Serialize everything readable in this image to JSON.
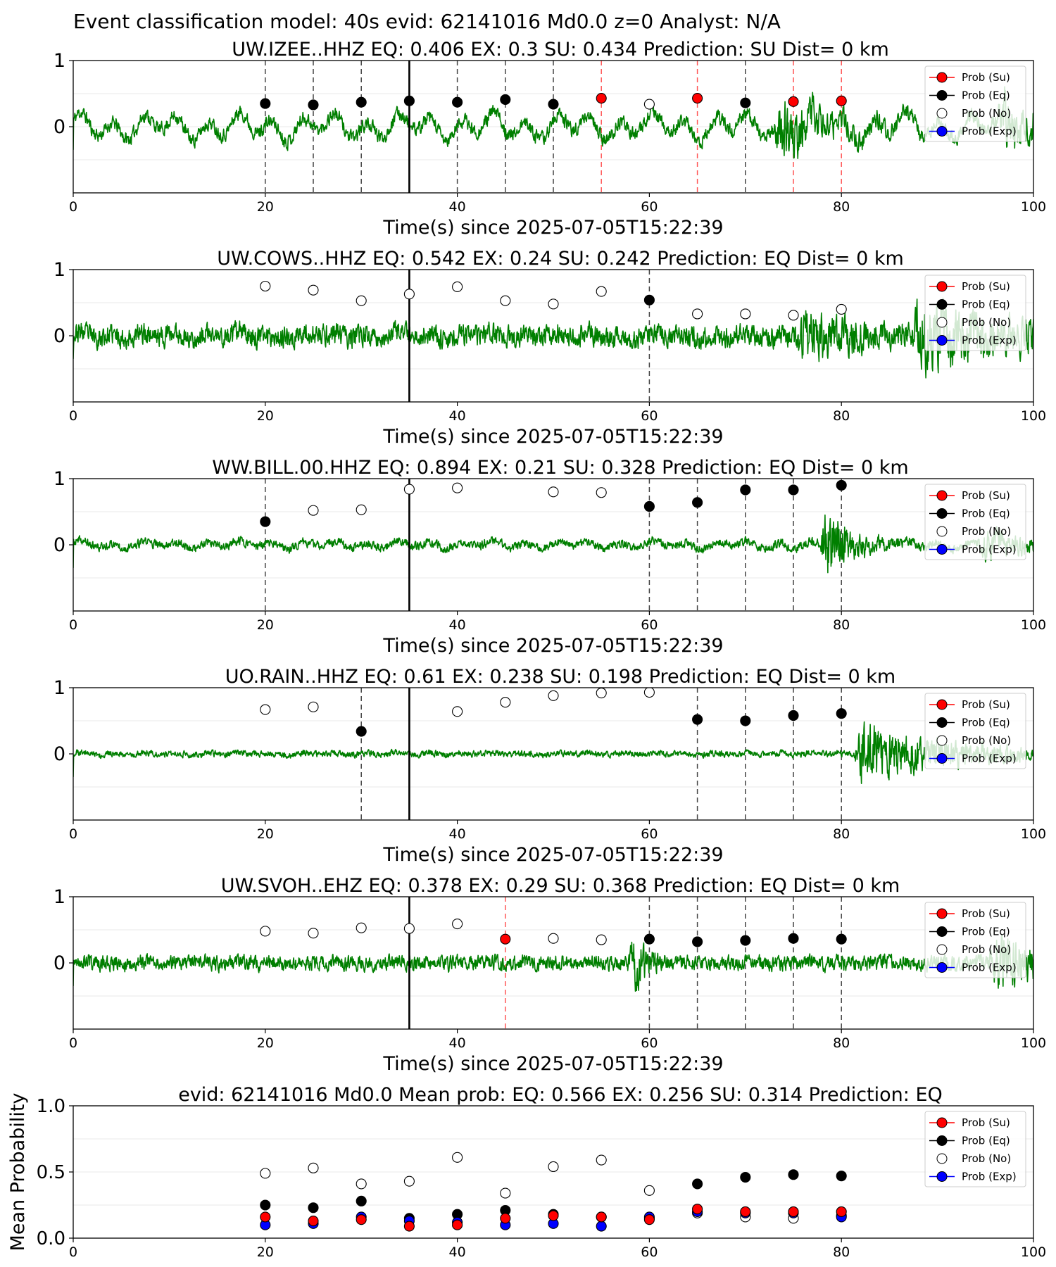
{
  "figure_title": "Event classification model: 40s evid: 62141016 Md0.0 z=0 Analyst: N/A",
  "colors": {
    "waveform": "#007f00",
    "su": "#ff0000",
    "eq": "#000000",
    "no": "#ffffff",
    "exp": "#0000ff",
    "eq_line": "#444444",
    "su_line": "#ff5555",
    "origin_line": "#000000"
  },
  "legend": {
    "location": "upper right",
    "entries": [
      "Prob (Su)",
      "Prob (Eq)",
      "Prob (No)",
      "Prob (Exp)"
    ]
  },
  "chart_data": [
    {
      "type": "line+scatter",
      "title": "UW.IZEE..HHZ   EQ: 0.406  EX: 0.3  SU: 0.434   Prediction: SU    Dist= 0 km",
      "xlabel": "Time(s) since 2025-07-05T15:22:39",
      "ylabel": "",
      "xlim": [
        0,
        100
      ],
      "ylim": [
        -1,
        1
      ],
      "xticks": [
        "0",
        "20",
        "40",
        "60",
        "80",
        "100"
      ],
      "yticks": [
        "0",
        "1"
      ],
      "origin_time": 35,
      "waveform": {
        "seed": 11,
        "noise": 0.16,
        "low": 0.22,
        "events": [
          {
            "t": 73.5,
            "amp": 0.55,
            "dur": 5
          },
          {
            "t": 97,
            "amp": 0.5,
            "dur": 4
          }
        ]
      },
      "windows": [
        {
          "t": 20,
          "label": "EQ",
          "eq": 0.35
        },
        {
          "t": 25,
          "label": "EQ",
          "eq": 0.33
        },
        {
          "t": 30,
          "label": "EQ",
          "eq": 0.37
        },
        {
          "t": 35,
          "label": "EQ",
          "eq": 0.39
        },
        {
          "t": 40,
          "label": "EQ",
          "eq": 0.37
        },
        {
          "t": 45,
          "label": "EQ",
          "eq": 0.41
        },
        {
          "t": 50,
          "label": "EQ",
          "eq": 0.34
        },
        {
          "t": 55,
          "label": "SU",
          "su": 0.43
        },
        {
          "t": 60,
          "label": "",
          "no": 0.34
        },
        {
          "t": 65,
          "label": "SU",
          "su": 0.43
        },
        {
          "t": 70,
          "label": "EQ",
          "eq": 0.36
        },
        {
          "t": 75,
          "label": "SU",
          "su": 0.38
        },
        {
          "t": 80,
          "label": "SU",
          "su": 0.39
        }
      ]
    },
    {
      "type": "line+scatter",
      "title": "UW.COWS..HHZ   EQ: 0.542  EX: 0.24  SU: 0.242   Prediction: EQ    Dist= 0 km",
      "xlabel": "Time(s) since 2025-07-05T15:22:39",
      "ylabel": "",
      "xlim": [
        0,
        100
      ],
      "ylim": [
        -1,
        1
      ],
      "xticks": [
        "0",
        "20",
        "40",
        "60",
        "80",
        "100"
      ],
      "yticks": [
        "0",
        "1"
      ],
      "origin_time": 35,
      "waveform": {
        "seed": 23,
        "noise": 0.24,
        "low": 0.05,
        "events": [
          {
            "t": 88,
            "amp": 0.55,
            "dur": 9
          },
          {
            "t": 76,
            "amp": 0.35,
            "dur": 6
          }
        ]
      },
      "windows": [
        {
          "t": 20,
          "label": "",
          "no": 0.75
        },
        {
          "t": 25,
          "label": "",
          "no": 0.69
        },
        {
          "t": 30,
          "label": "",
          "no": 0.53
        },
        {
          "t": 35,
          "label": "",
          "no": 0.63
        },
        {
          "t": 40,
          "label": "",
          "no": 0.74
        },
        {
          "t": 45,
          "label": "",
          "no": 0.53
        },
        {
          "t": 50,
          "label": "",
          "no": 0.48
        },
        {
          "t": 55,
          "label": "",
          "no": 0.67
        },
        {
          "t": 60,
          "label": "EQ",
          "eq": 0.54
        },
        {
          "t": 65,
          "label": "",
          "no": 0.33
        },
        {
          "t": 70,
          "label": "",
          "no": 0.33
        },
        {
          "t": 75,
          "label": "",
          "no": 0.31
        },
        {
          "t": 80,
          "label": "",
          "no": 0.4
        }
      ]
    },
    {
      "type": "line+scatter",
      "title": "WW.BILL.00.HHZ   EQ: 0.894  EX: 0.21  SU: 0.328   Prediction: EQ    Dist= 0 km",
      "xlabel": "Time(s) since 2025-07-05T15:22:39",
      "ylabel": "",
      "xlim": [
        0,
        100
      ],
      "ylim": [
        -1,
        1
      ],
      "xticks": [
        "0",
        "20",
        "40",
        "60",
        "80",
        "100"
      ],
      "yticks": [
        "0",
        "1"
      ],
      "origin_time": 35,
      "waveform": {
        "seed": 37,
        "noise": 0.1,
        "low": 0.06,
        "events": [
          {
            "t": 78.5,
            "amp": 0.75,
            "dur": 2.5
          },
          {
            "t": 95,
            "amp": 0.25,
            "dur": 5
          }
        ]
      },
      "windows": [
        {
          "t": 20,
          "label": "EQ",
          "eq": 0.35
        },
        {
          "t": 25,
          "label": "",
          "no": 0.52
        },
        {
          "t": 30,
          "label": "",
          "no": 0.53
        },
        {
          "t": 35,
          "label": "",
          "no": 0.84
        },
        {
          "t": 40,
          "label": "",
          "no": 0.86
        },
        {
          "t": 50,
          "label": "",
          "no": 0.8
        },
        {
          "t": 55,
          "label": "",
          "no": 0.79
        },
        {
          "t": 60,
          "label": "EQ",
          "eq": 0.58
        },
        {
          "t": 65,
          "label": "EQ",
          "eq": 0.64
        },
        {
          "t": 70,
          "label": "EQ",
          "eq": 0.83
        },
        {
          "t": 75,
          "label": "EQ",
          "eq": 0.83
        },
        {
          "t": 80,
          "label": "EQ",
          "eq": 0.9
        }
      ]
    },
    {
      "type": "line+scatter",
      "title": "UO.RAIN..HHZ   EQ: 0.61  EX: 0.238  SU: 0.198   Prediction: EQ    Dist= 0 km",
      "xlabel": "Time(s) since 2025-07-05T15:22:39",
      "ylabel": "",
      "xlim": [
        0,
        100
      ],
      "ylim": [
        -1,
        1
      ],
      "xticks": [
        "0",
        "20",
        "40",
        "60",
        "80",
        "100"
      ],
      "yticks": [
        "0",
        "1"
      ],
      "origin_time": 35,
      "waveform": {
        "seed": 51,
        "noise": 0.07,
        "low": 0.02,
        "events": [
          {
            "t": 82,
            "amp": 0.65,
            "dur": 9
          }
        ]
      },
      "windows": [
        {
          "t": 20,
          "label": "",
          "no": 0.67
        },
        {
          "t": 25,
          "label": "",
          "no": 0.71
        },
        {
          "t": 30,
          "label": "EQ",
          "eq": 0.34
        },
        {
          "t": 40,
          "label": "",
          "no": 0.64
        },
        {
          "t": 45,
          "label": "",
          "no": 0.78
        },
        {
          "t": 50,
          "label": "",
          "no": 0.88
        },
        {
          "t": 55,
          "label": "",
          "no": 0.92
        },
        {
          "t": 60,
          "label": "",
          "no": 0.93
        },
        {
          "t": 65,
          "label": "EQ",
          "eq": 0.52
        },
        {
          "t": 70,
          "label": "EQ",
          "eq": 0.5
        },
        {
          "t": 75,
          "label": "EQ",
          "eq": 0.58
        },
        {
          "t": 80,
          "label": "EQ",
          "eq": 0.61
        }
      ]
    },
    {
      "type": "line+scatter",
      "title": "UW.SVOH..EHZ   EQ: 0.378  EX: 0.29  SU: 0.368   Prediction: EQ    Dist= 0 km",
      "xlabel": "Time(s) since 2025-07-05T15:22:39",
      "ylabel": "",
      "xlim": [
        0,
        100
      ],
      "ylim": [
        -1,
        1
      ],
      "xticks": [
        "0",
        "20",
        "40",
        "60",
        "80",
        "100"
      ],
      "yticks": [
        "0",
        "1"
      ],
      "origin_time": 35,
      "waveform": {
        "seed": 67,
        "noise": 0.17,
        "low": 0.02,
        "events": [
          {
            "t": 96,
            "amp": 0.45,
            "dur": 6
          },
          {
            "t": 58.5,
            "amp": 0.55,
            "dur": 1
          }
        ]
      },
      "windows": [
        {
          "t": 20,
          "label": "",
          "no": 0.48
        },
        {
          "t": 25,
          "label": "",
          "no": 0.45
        },
        {
          "t": 30,
          "label": "",
          "no": 0.53
        },
        {
          "t": 35,
          "label": "",
          "no": 0.52
        },
        {
          "t": 40,
          "label": "",
          "no": 0.59
        },
        {
          "t": 45,
          "label": "SU",
          "su": 0.36
        },
        {
          "t": 50,
          "label": "",
          "no": 0.37
        },
        {
          "t": 55,
          "label": "",
          "no": 0.35
        },
        {
          "t": 60,
          "label": "EQ",
          "eq": 0.36
        },
        {
          "t": 65,
          "label": "EQ",
          "eq": 0.32
        },
        {
          "t": 70,
          "label": "EQ",
          "eq": 0.34
        },
        {
          "t": 75,
          "label": "EQ",
          "eq": 0.37
        },
        {
          "t": 80,
          "label": "EQ",
          "eq": 0.36
        }
      ]
    },
    {
      "type": "scatter",
      "title": "evid: 62141016  Md0.0   Mean prob:   EQ: 0.566  EX: 0.256  SU: 0.314   Prediction: EQ",
      "xlabel": "",
      "ylabel": "Mean Probability",
      "xlim": [
        0,
        100
      ],
      "ylim": [
        0,
        1
      ],
      "xticks": [
        "0",
        "20",
        "40",
        "60",
        "80",
        "100"
      ],
      "yticks": [
        "0.0",
        "0.5",
        "1.0"
      ],
      "x": [
        20,
        25,
        30,
        35,
        40,
        45,
        50,
        55,
        60,
        65,
        70,
        75,
        80
      ],
      "series": [
        {
          "name": "Prob (No)",
          "values": [
            0.49,
            0.53,
            0.41,
            0.43,
            0.61,
            0.34,
            0.54,
            0.59,
            0.36,
            0.19,
            0.16,
            0.15,
            0.17
          ]
        },
        {
          "name": "Prob (Eq)",
          "values": [
            0.25,
            0.23,
            0.28,
            0.15,
            0.18,
            0.21,
            0.18,
            0.16,
            0.15,
            0.41,
            0.46,
            0.48,
            0.47
          ]
        },
        {
          "name": "Prob (Exp)",
          "values": [
            0.1,
            0.11,
            0.16,
            0.13,
            0.12,
            0.1,
            0.11,
            0.09,
            0.16,
            0.2,
            0.19,
            0.19,
            0.16
          ]
        },
        {
          "name": "Prob (Su)",
          "values": [
            0.16,
            0.13,
            0.14,
            0.09,
            0.1,
            0.15,
            0.17,
            0.16,
            0.14,
            0.22,
            0.2,
            0.2,
            0.2
          ]
        }
      ]
    }
  ]
}
